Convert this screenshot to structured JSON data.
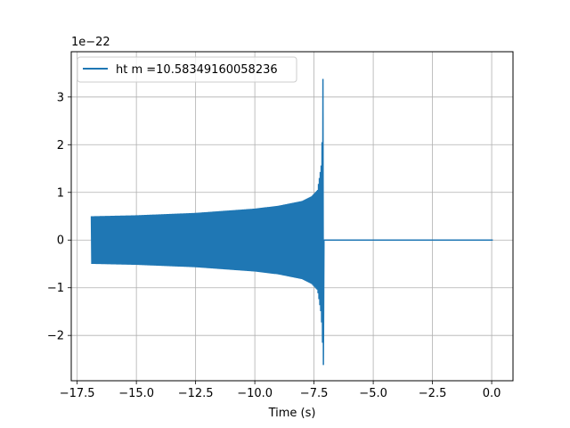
{
  "chart_data": {
    "type": "line",
    "title": "",
    "xlabel": "Time (s)",
    "ylabel": "",
    "y_offset_label": "1e−22",
    "xlim": [
      -17.75,
      0.9
    ],
    "ylim": [
      -2.95,
      3.95
    ],
    "x_ticks": [
      -17.5,
      -15.0,
      -12.5,
      -10.0,
      -7.5,
      -5.0,
      -2.5,
      0.0
    ],
    "x_tick_labels": [
      "−17.5",
      "−15.0",
      "−12.5",
      "−10.0",
      "−7.5",
      "−5.0",
      "−2.5",
      "0.0"
    ],
    "y_ticks": [
      -2,
      -1,
      0,
      1,
      2,
      3
    ],
    "y_tick_labels": [
      "−2",
      "−1",
      "0",
      "1",
      "2",
      "3"
    ],
    "grid": true,
    "legend_position": "upper-left",
    "series": [
      {
        "name": "ht m =10.58349160058236",
        "color": "#1f77b4",
        "t_start": -16.9,
        "t_merger": -7.1,
        "t_end": 0.05,
        "envelope": [
          {
            "x": -16.85,
            "upper": 0.5,
            "lower": -0.5
          },
          {
            "x": -15.0,
            "upper": 0.52,
            "lower": -0.52
          },
          {
            "x": -12.5,
            "upper": 0.57,
            "lower": -0.57
          },
          {
            "x": -10.0,
            "upper": 0.66,
            "lower": -0.66
          },
          {
            "x": -9.0,
            "upper": 0.72,
            "lower": -0.72
          },
          {
            "x": -8.0,
            "upper": 0.82,
            "lower": -0.82
          },
          {
            "x": -7.6,
            "upper": 0.92,
            "lower": -0.92
          },
          {
            "x": -7.35,
            "upper": 1.05,
            "lower": -1.05
          },
          {
            "x": -7.2,
            "upper": 1.55,
            "lower": -1.55
          },
          {
            "x": -7.15,
            "upper": 2.2,
            "lower": -2.0
          },
          {
            "x": -7.12,
            "upper": 3.55,
            "lower": -2.62
          }
        ],
        "post_merger_value": 0.0
      }
    ]
  }
}
